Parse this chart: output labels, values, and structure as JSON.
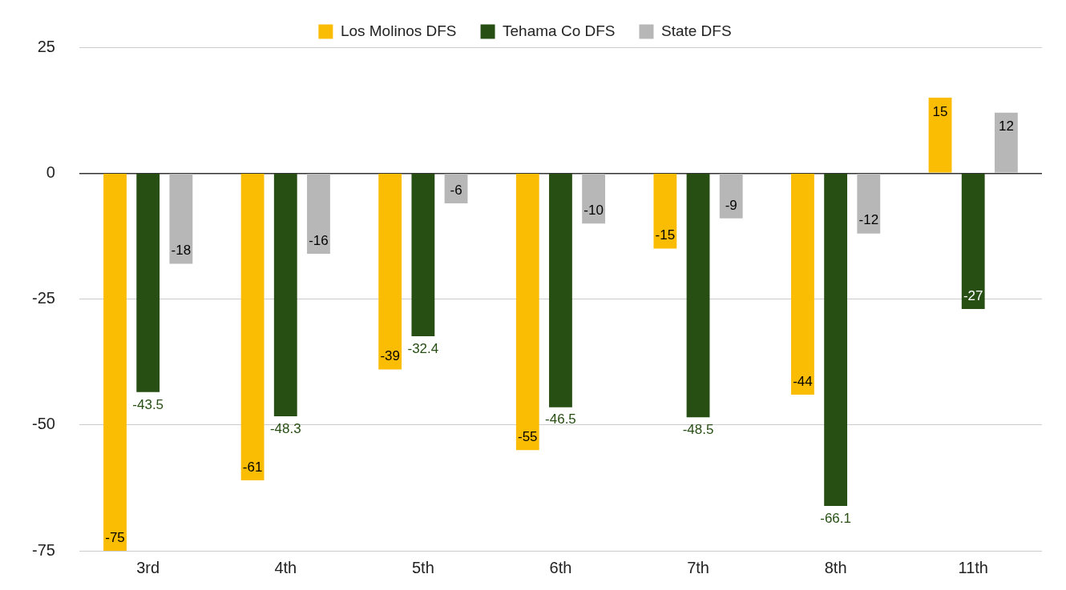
{
  "chart_data": {
    "type": "bar",
    "categories": [
      "3rd",
      "4th",
      "5th",
      "6th",
      "7th",
      "8th",
      "11th"
    ],
    "series": [
      {
        "name": "Los Molinos DFS",
        "color": "#fbbc04",
        "values": [
          -75,
          -61,
          -39,
          -55,
          -15,
          -44,
          15
        ]
      },
      {
        "name": "Tehama Co DFS",
        "color": "#274e13",
        "values": [
          -43.5,
          -48.3,
          -32.4,
          -46.5,
          -48.5,
          -66.1,
          -27
        ]
      },
      {
        "name": "State DFS",
        "color": "#b7b7b7",
        "values": [
          -18,
          -16,
          -6,
          -10,
          -9,
          -12,
          12
        ]
      }
    ],
    "ylim": [
      -75,
      25
    ],
    "yticks": [
      -75,
      -50,
      -25,
      0,
      25
    ],
    "grid": "y",
    "legend": "top",
    "data_labels": true
  }
}
